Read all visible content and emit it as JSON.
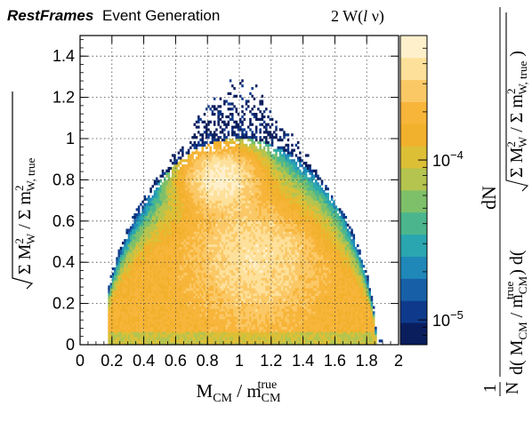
{
  "header": {
    "brand": "RestFrames",
    "subtitle": "Event Generation",
    "process": "2 W(",
    "process_lepton": "l",
    "process_tail": " ν)"
  },
  "chart_data": {
    "type": "heatmap",
    "xlabel": {
      "main": "M",
      "sub": "CM",
      "sep": " / m",
      "sub2": "CM",
      "sup2": "true"
    },
    "ylabel": {
      "pre": "Σ M",
      "sup": "2",
      "sub": "W",
      "mid": " / Σ m",
      "sup2": "2",
      "sub2": "W, true"
    },
    "zlabel": {
      "frac": "1",
      "n": "N",
      "num": "dN",
      "den_a": "d( M",
      "den_a_sub": "CM",
      "den_a_mid": " / m",
      "den_a_sub2": "CM",
      "den_a_sup2": "true",
      "den_b": " ) d(",
      "den_c": "Σ M",
      "den_c_sup": "2",
      "den_c_sub": "W",
      "den_c_mid": " / Σ m",
      "den_c_sup2": "2",
      "den_c_sub2": "W, true",
      "den_end": " )"
    },
    "xlim": [
      0,
      2
    ],
    "ylim": [
      0,
      1.5
    ],
    "x_ticks": [
      0,
      0.2,
      0.4,
      0.6,
      0.8,
      1,
      1.2,
      1.4,
      1.6,
      1.8,
      2
    ],
    "x_tick_labels": [
      "0",
      "0.2",
      "0.4",
      "0.6",
      "0.8",
      "1",
      "1.2",
      "1.4",
      "1.6",
      "1.8",
      "2"
    ],
    "y_ticks": [
      0,
      0.2,
      0.4,
      0.6,
      0.8,
      1,
      1.2,
      1.4
    ],
    "y_tick_labels": [
      "0",
      "0.2",
      "0.4",
      "0.6",
      "0.8",
      "1",
      "1.2",
      "1.4"
    ],
    "z_scale": "log",
    "zlim": [
      7e-06,
      0.0006
    ],
    "z_tick_labels": [
      {
        "value": 1e-05,
        "base": "10",
        "exp": "−5"
      },
      {
        "value": 0.0001,
        "base": "10",
        "exp": "−4"
      }
    ],
    "grid": true,
    "colormap": [
      "#0a1e5e",
      "#0f3a8c",
      "#1760a8",
      "#1f88b8",
      "#2aa6b0",
      "#4bb68e",
      "#7ec06a",
      "#b4c44e",
      "#ddbf36",
      "#f2b12c",
      "#f7b53a",
      "#fbc866",
      "#fde09a",
      "#fff0cc"
    ],
    "density_model": {
      "support": "x from ~0.17 to ~1.9; upper edge y≈1.0 near x=1, falling to 0 at x≈0.2 and x≈1.88; sparse speckle up to y≈1.3",
      "peak": {
        "x": 0.88,
        "y": 0.82,
        "value": 0.0006
      },
      "secondary_peak": {
        "x": 1.1,
        "y": 0.4,
        "value": 0.0004
      }
    }
  }
}
